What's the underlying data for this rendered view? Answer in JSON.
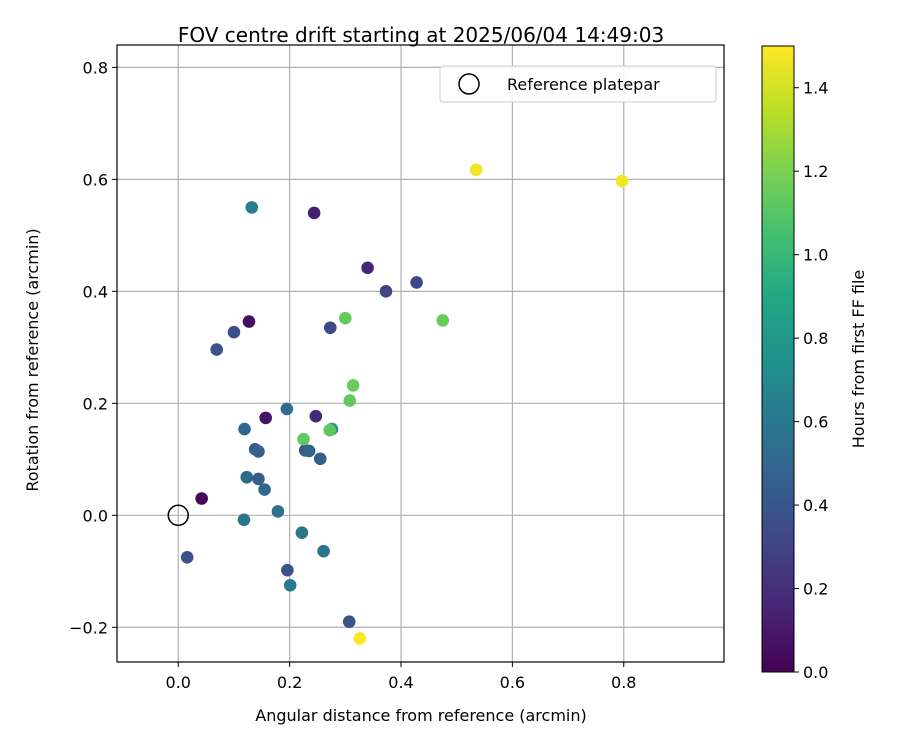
{
  "chart_data": {
    "type": "scatter",
    "title": "FOV centre drift starting at 2025/06/04 14:49:03",
    "xlabel": "Angular distance from reference (arcmin)",
    "ylabel": "Rotation from reference (arcmin)",
    "xlim": [
      -0.11,
      0.98
    ],
    "ylim": [
      -0.262,
      0.84
    ],
    "xticks": [
      0.0,
      0.2,
      0.4,
      0.6,
      0.8
    ],
    "xtick_labels": [
      "0.0",
      "0.2",
      "0.4",
      "0.6",
      "0.8"
    ],
    "yticks": [
      -0.2,
      0.0,
      0.2,
      0.4,
      0.6,
      0.8
    ],
    "ytick_labels": [
      "−0.2",
      "0.0",
      "0.2",
      "0.4",
      "0.6",
      "0.8"
    ],
    "grid": true,
    "legend": {
      "placement": "top-right",
      "entries": [
        "Reference platepar"
      ]
    },
    "colormap": "viridis",
    "colorbar": {
      "label": "Hours from first FF file",
      "range": [
        0.0,
        1.5
      ],
      "ticks": [
        0.0,
        0.2,
        0.4,
        0.6,
        0.8,
        1.0,
        1.2,
        1.4
      ],
      "tick_labels": [
        "0.0",
        "0.2",
        "0.4",
        "0.6",
        "0.8",
        "1.0",
        "1.2",
        "1.4"
      ]
    },
    "reference_point": {
      "x": 0.0,
      "y": 0.0
    },
    "points": [
      {
        "x": 0.042,
        "y": 0.03,
        "hours": 0.02
      },
      {
        "x": 0.127,
        "y": 0.346,
        "hours": 0.05
      },
      {
        "x": 0.157,
        "y": 0.174,
        "hours": 0.08
      },
      {
        "x": 0.244,
        "y": 0.54,
        "hours": 0.13
      },
      {
        "x": 0.34,
        "y": 0.442,
        "hours": 0.16
      },
      {
        "x": 0.247,
        "y": 0.177,
        "hours": 0.17
      },
      {
        "x": 0.373,
        "y": 0.4,
        "hours": 0.3
      },
      {
        "x": 0.428,
        "y": 0.416,
        "hours": 0.32
      },
      {
        "x": 0.273,
        "y": 0.335,
        "hours": 0.33
      },
      {
        "x": 0.1,
        "y": 0.327,
        "hours": 0.36
      },
      {
        "x": 0.069,
        "y": 0.296,
        "hours": 0.38
      },
      {
        "x": 0.016,
        "y": -0.075,
        "hours": 0.38
      },
      {
        "x": 0.196,
        "y": -0.098,
        "hours": 0.38
      },
      {
        "x": 0.307,
        "y": -0.19,
        "hours": 0.39
      },
      {
        "x": 0.228,
        "y": 0.116,
        "hours": 0.4
      },
      {
        "x": 0.138,
        "y": 0.118,
        "hours": 0.42
      },
      {
        "x": 0.144,
        "y": 0.065,
        "hours": 0.44
      },
      {
        "x": 0.255,
        "y": 0.101,
        "hours": 0.45
      },
      {
        "x": 0.235,
        "y": 0.115,
        "hours": 0.46
      },
      {
        "x": 0.144,
        "y": 0.114,
        "hours": 0.47
      },
      {
        "x": 0.119,
        "y": 0.154,
        "hours": 0.5
      },
      {
        "x": 0.123,
        "y": 0.068,
        "hours": 0.51
      },
      {
        "x": 0.155,
        "y": 0.046,
        "hours": 0.51
      },
      {
        "x": 0.195,
        "y": 0.19,
        "hours": 0.53
      },
      {
        "x": 0.179,
        "y": 0.007,
        "hours": 0.56
      },
      {
        "x": 0.118,
        "y": -0.008,
        "hours": 0.58
      },
      {
        "x": 0.222,
        "y": -0.031,
        "hours": 0.58
      },
      {
        "x": 0.261,
        "y": -0.064,
        "hours": 0.59
      },
      {
        "x": 0.201,
        "y": -0.125,
        "hours": 0.61
      },
      {
        "x": 0.132,
        "y": 0.55,
        "hours": 0.63
      },
      {
        "x": 0.276,
        "y": 0.154,
        "hours": 0.78
      },
      {
        "x": 0.272,
        "y": 0.152,
        "hours": 1.12
      },
      {
        "x": 0.225,
        "y": 0.136,
        "hours": 1.13
      },
      {
        "x": 0.3,
        "y": 0.352,
        "hours": 1.14
      },
      {
        "x": 0.308,
        "y": 0.205,
        "hours": 1.14
      },
      {
        "x": 0.314,
        "y": 0.232,
        "hours": 1.15
      },
      {
        "x": 0.475,
        "y": 0.348,
        "hours": 1.15
      },
      {
        "x": 0.535,
        "y": 0.617,
        "hours": 1.47
      },
      {
        "x": 0.797,
        "y": 0.597,
        "hours": 1.48
      },
      {
        "x": 0.326,
        "y": -0.22,
        "hours": 1.5
      }
    ]
  }
}
